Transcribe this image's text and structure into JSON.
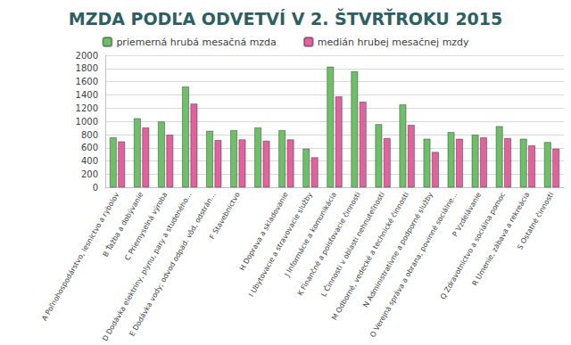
{
  "chart_data": {
    "type": "bar",
    "title": "MZDA PODĽA ODVETVÍ V 2. ŠTVRŤROKU 2015",
    "categories": [
      "A Poľnohospodárstvo, lesníctvo a rybolov",
      "B Ťažba a dobývanie",
      "C Priemyselná výroba",
      "D Dodávka elektriny, plynu, pary a studeného...",
      "E Dodávka vody; odvod odpad. vôd, odstrán...",
      "F Stavebníctvo",
      null,
      "H Doprava a skladovanie",
      "I Ubytovacie a stravovacie služby",
      "J Informácie a komunikácia",
      "K Finančné a poisťovacie činnosti",
      "L Činnosti v oblasti nehnuteľností",
      "M Odborné, vedecké a technické činnosti",
      "N Administratívne a podporné služby",
      "O Verejná správa a obrana; povinné sociálne...",
      "P Vzdelávanie",
      "Q Zdravotníctvo a sociálna pomoc",
      "R Umenie, zábava a rekreácia",
      "S Ostatné činnosti"
    ],
    "series": [
      {
        "name": "priemerná hrubá mesačná mzda",
        "color": "#6fbf6a",
        "values": [
          760,
          1050,
          1000,
          1530,
          860,
          870,
          910,
          870,
          590,
          1830,
          1760,
          960,
          1260,
          740,
          840,
          800,
          930,
          740,
          690
        ]
      },
      {
        "name": "medián hrubej mesačnej mzdy",
        "color": "#e2629e",
        "values": [
          700,
          910,
          800,
          1270,
          720,
          730,
          710,
          730,
          460,
          1380,
          1300,
          750,
          950,
          540,
          740,
          760,
          750,
          640,
          590
        ]
      }
    ],
    "ylim": [
      0,
      2000
    ],
    "yticks": [
      0,
      200,
      400,
      600,
      800,
      1000,
      1200,
      1400,
      1600,
      1800,
      2000
    ],
    "grid": true,
    "legend": "top"
  }
}
